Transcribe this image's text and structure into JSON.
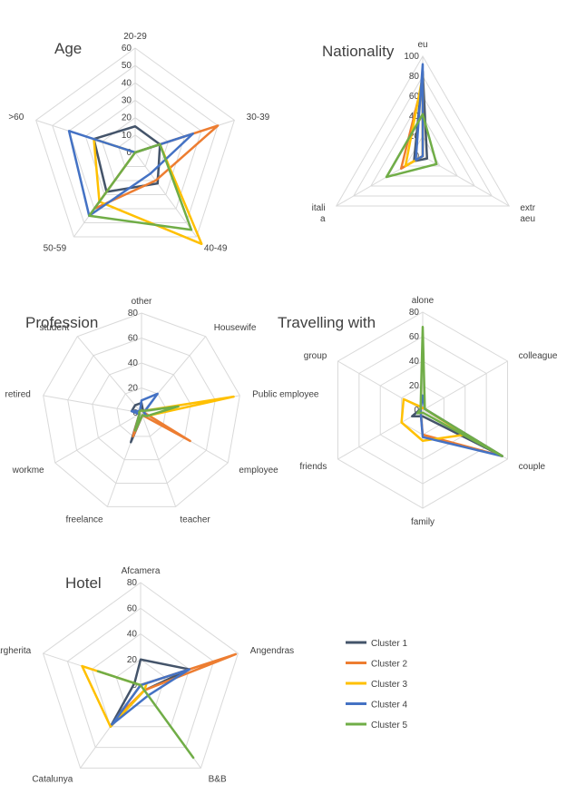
{
  "legend": {
    "items": [
      {
        "name": "Cluster 1",
        "color": "#44546a"
      },
      {
        "name": "Cluster 2",
        "color": "#ed7d31"
      },
      {
        "name": "Cluster 3",
        "color": "#ffc000"
      },
      {
        "name": "Cluster 4",
        "color": "#4472c4"
      },
      {
        "name": "Cluster 5",
        "color": "#70ad47"
      }
    ]
  },
  "chart_data": [
    {
      "type": "radar",
      "title": "Age",
      "categories": [
        "20-29",
        "30-39",
        "40-49",
        "50-59",
        ">60"
      ],
      "ylim": [
        0,
        60
      ],
      "ticks": [
        0,
        10,
        20,
        30,
        40,
        50,
        60
      ],
      "series": [
        {
          "name": "Cluster 1",
          "values": [
            15,
            15,
            22,
            28,
            25
          ]
        },
        {
          "name": "Cluster 2",
          "values": [
            0,
            50,
            20,
            40,
            0
          ]
        },
        {
          "name": "Cluster 3",
          "values": [
            0,
            15,
            65,
            35,
            25
          ]
        },
        {
          "name": "Cluster 4",
          "values": [
            0,
            35,
            15,
            45,
            40
          ]
        },
        {
          "name": "Cluster 5",
          "values": [
            0,
            15,
            55,
            45,
            0
          ]
        }
      ]
    },
    {
      "type": "radar",
      "title": "Nationality",
      "categories": [
        "eu",
        "extr\naeu",
        "itali\na"
      ],
      "ylim": [
        0,
        100
      ],
      "ticks": [
        0,
        20,
        40,
        60,
        80,
        100
      ],
      "series": [
        {
          "name": "Cluster 1",
          "values": [
            85,
            5,
            10
          ]
        },
        {
          "name": "Cluster 2",
          "values": [
            75,
            0,
            25
          ]
        },
        {
          "name": "Cluster 3",
          "values": [
            80,
            0,
            20
          ]
        },
        {
          "name": "Cluster 4",
          "values": [
            92,
            0,
            8
          ]
        },
        {
          "name": "Cluster 5",
          "values": [
            42,
            16,
            42
          ]
        }
      ]
    },
    {
      "type": "radar",
      "title": "Profession",
      "categories": [
        "other",
        "Housewife",
        "Public employee",
        "employee",
        "teacher",
        "freelance",
        "workme",
        "retired",
        "student"
      ],
      "ylim": [
        0,
        80
      ],
      "ticks": [
        0,
        20,
        40,
        60,
        80
      ],
      "series": [
        {
          "name": "Cluster 1",
          "values": [
            8,
            2,
            2,
            5,
            2,
            25,
            2,
            8,
            8
          ]
        },
        {
          "name": "Cluster 2",
          "values": [
            2,
            2,
            2,
            45,
            2,
            20,
            2,
            2,
            2
          ]
        },
        {
          "name": "Cluster 3",
          "values": [
            2,
            2,
            75,
            5,
            2,
            15,
            2,
            2,
            2
          ]
        },
        {
          "name": "Cluster 4",
          "values": [
            10,
            20,
            2,
            5,
            2,
            15,
            2,
            8,
            2
          ]
        },
        {
          "name": "Cluster 5",
          "values": [
            2,
            2,
            30,
            5,
            2,
            15,
            2,
            2,
            2
          ]
        }
      ]
    },
    {
      "type": "radar",
      "title": "Travelling with",
      "categories": [
        "alone",
        "colleague",
        "couple",
        "family",
        "friends",
        "group"
      ],
      "ylim": [
        0,
        80
      ],
      "ticks": [
        0,
        20,
        40,
        60,
        80
      ],
      "series": [
        {
          "name": "Cluster 1",
          "values": [
            2,
            2,
            75,
            5,
            10,
            2
          ]
        },
        {
          "name": "Cluster 2",
          "values": [
            2,
            2,
            75,
            20,
            2,
            2
          ]
        },
        {
          "name": "Cluster 3",
          "values": [
            2,
            2,
            40,
            25,
            20,
            18
          ]
        },
        {
          "name": "Cluster 4",
          "values": [
            12,
            2,
            75,
            22,
            2,
            2
          ]
        },
        {
          "name": "Cluster 5",
          "values": [
            68,
            2,
            75,
            2,
            5,
            2
          ]
        }
      ]
    },
    {
      "type": "radar",
      "title": "Hotel",
      "categories": [
        "Afcamera",
        "Angendras",
        "B&B",
        "Catalunya",
        "Margherita"
      ],
      "ylim": [
        0,
        80
      ],
      "ticks": [
        0,
        20,
        40,
        60,
        80
      ],
      "series": [
        {
          "name": "Cluster 1",
          "values": [
            20,
            40,
            5,
            40,
            5
          ]
        },
        {
          "name": "Cluster 2",
          "values": [
            0,
            78,
            5,
            30,
            0
          ]
        },
        {
          "name": "Cluster 3",
          "values": [
            0,
            5,
            5,
            40,
            48
          ]
        },
        {
          "name": "Cluster 4",
          "values": [
            0,
            40,
            10,
            38,
            0
          ]
        },
        {
          "name": "Cluster 5",
          "values": [
            0,
            0,
            70,
            0,
            35
          ]
        }
      ]
    }
  ]
}
